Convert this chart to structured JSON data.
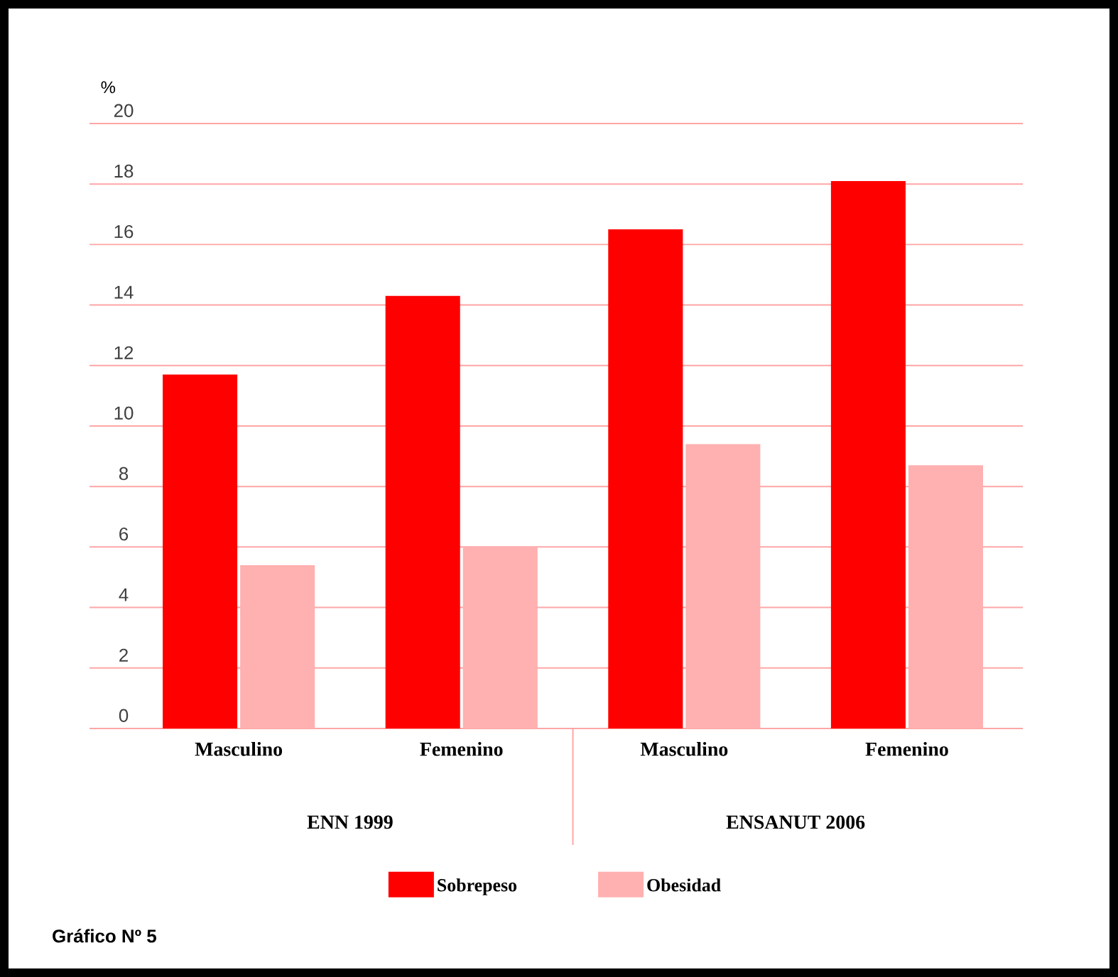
{
  "chart_data": {
    "type": "bar",
    "ylabel": "%",
    "categories": [
      "Masculino",
      "Femenino",
      "Masculino",
      "Femenino"
    ],
    "series": [
      {
        "name": "Sobrepeso",
        "color": "#ff0000",
        "values": [
          11.7,
          14.3,
          16.5,
          18.1
        ]
      },
      {
        "name": "Obesidad",
        "color": "#ffb0b0",
        "values": [
          5.4,
          6.0,
          9.4,
          8.7
        ]
      }
    ],
    "ylim": [
      0,
      20
    ],
    "yticks": [
      0,
      2,
      4,
      6,
      8,
      10,
      12,
      14,
      16,
      18,
      20
    ],
    "grid": "y",
    "legend": "bottom",
    "annotations": [
      "ENN 1999",
      "ENSANUT  2006",
      "Gráfico Nº 5"
    ]
  }
}
